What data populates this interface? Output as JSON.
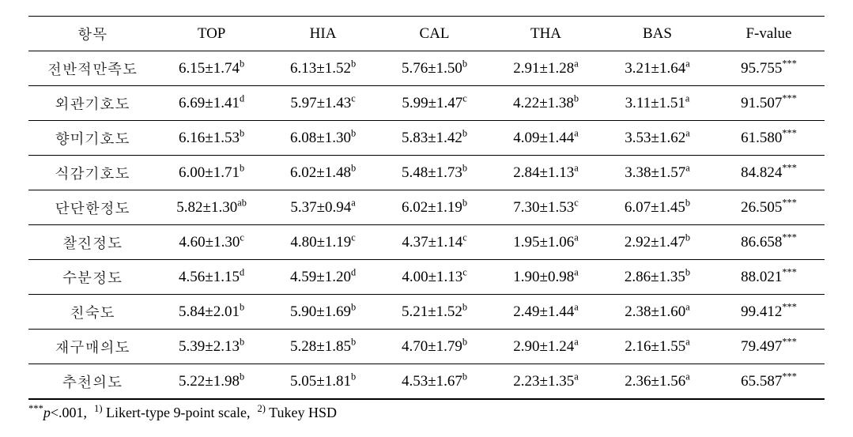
{
  "table": {
    "columns": [
      "항목",
      "TOP",
      "HIA",
      "CAL",
      "THA",
      "BAS",
      "F-value"
    ],
    "col_widths_pct": [
      16,
      14,
      14,
      14,
      14,
      14,
      14
    ],
    "header_border_top": "1px solid #000",
    "header_border_bottom_double": true,
    "row_border": "1px solid #000",
    "last_row_border_bottom": "2px solid #000",
    "font_family": "Times New Roman / Batang serif",
    "font_size_pt": 14,
    "background_color": "#ffffff",
    "text_color": "#000000",
    "rows": [
      {
        "label": "전반적만족도",
        "TOP": {
          "mean": "6.15",
          "sd": "1.74",
          "sup": "b"
        },
        "HIA": {
          "mean": "6.13",
          "sd": "1.52",
          "sup": "b"
        },
        "CAL": {
          "mean": "5.76",
          "sd": "1.50",
          "sup": "b"
        },
        "THA": {
          "mean": "2.91",
          "sd": "1.28",
          "sup": "a"
        },
        "BAS": {
          "mean": "3.21",
          "sd": "1.64",
          "sup": "a"
        },
        "F": {
          "value": "95.755",
          "sup": "***"
        }
      },
      {
        "label": "외관기호도",
        "TOP": {
          "mean": "6.69",
          "sd": "1.41",
          "sup": "d"
        },
        "HIA": {
          "mean": "5.97",
          "sd": "1.43",
          "sup": "c"
        },
        "CAL": {
          "mean": "5.99",
          "sd": "1.47",
          "sup": "c"
        },
        "THA": {
          "mean": "4.22",
          "sd": "1.38",
          "sup": "b"
        },
        "BAS": {
          "mean": "3.11",
          "sd": "1.51",
          "sup": "a"
        },
        "F": {
          "value": "91.507",
          "sup": "***"
        }
      },
      {
        "label": "향미기호도",
        "TOP": {
          "mean": "6.16",
          "sd": "1.53",
          "sup": "b"
        },
        "HIA": {
          "mean": "6.08",
          "sd": "1.30",
          "sup": "b"
        },
        "CAL": {
          "mean": "5.83",
          "sd": "1.42",
          "sup": "b"
        },
        "THA": {
          "mean": "4.09",
          "sd": "1.44",
          "sup": "a"
        },
        "BAS": {
          "mean": "3.53",
          "sd": "1.62",
          "sup": "a"
        },
        "F": {
          "value": "61.580",
          "sup": "***"
        }
      },
      {
        "label": "식감기호도",
        "TOP": {
          "mean": "6.00",
          "sd": "1.71",
          "sup": "b"
        },
        "HIA": {
          "mean": "6.02",
          "sd": "1.48",
          "sup": "b"
        },
        "CAL": {
          "mean": "5.48",
          "sd": "1.73",
          "sup": "b"
        },
        "THA": {
          "mean": "2.84",
          "sd": "1.13",
          "sup": "a"
        },
        "BAS": {
          "mean": "3.38",
          "sd": "1.57",
          "sup": "a"
        },
        "F": {
          "value": "84.824",
          "sup": "***"
        }
      },
      {
        "label": "단단한정도",
        "TOP": {
          "mean": "5.82",
          "sd": "1.30",
          "sup": "ab"
        },
        "HIA": {
          "mean": "5.37",
          "sd": "0.94",
          "sup": "a"
        },
        "CAL": {
          "mean": "6.02",
          "sd": "1.19",
          "sup": "b"
        },
        "THA": {
          "mean": "7.30",
          "sd": "1.53",
          "sup": "c"
        },
        "BAS": {
          "mean": "6.07",
          "sd": "1.45",
          "sup": "b"
        },
        "F": {
          "value": "26.505",
          "sup": "***"
        }
      },
      {
        "label": "찰진정도",
        "TOP": {
          "mean": "4.60",
          "sd": "1.30",
          "sup": "c"
        },
        "HIA": {
          "mean": "4.80",
          "sd": "1.19",
          "sup": "c"
        },
        "CAL": {
          "mean": "4.37",
          "sd": "1.14",
          "sup": "c"
        },
        "THA": {
          "mean": "1.95",
          "sd": "1.06",
          "sup": "a"
        },
        "BAS": {
          "mean": "2.92",
          "sd": "1.47",
          "sup": "b"
        },
        "F": {
          "value": "86.658",
          "sup": "***"
        }
      },
      {
        "label": "수분정도",
        "TOP": {
          "mean": "4.56",
          "sd": "1.15",
          "sup": "d"
        },
        "HIA": {
          "mean": "4.59",
          "sd": "1.20",
          "sup": "d"
        },
        "CAL": {
          "mean": "4.00",
          "sd": "1.13",
          "sup": "c"
        },
        "THA": {
          "mean": "1.90",
          "sd": "0.98",
          "sup": "a"
        },
        "BAS": {
          "mean": "2.86",
          "sd": "1.35",
          "sup": "b"
        },
        "F": {
          "value": "88.021",
          "sup": "***"
        }
      },
      {
        "label": "친숙도",
        "TOP": {
          "mean": "5.84",
          "sd": "2.01",
          "sup": "b"
        },
        "HIA": {
          "mean": "5.90",
          "sd": "1.69",
          "sup": "b"
        },
        "CAL": {
          "mean": "5.21",
          "sd": "1.52",
          "sup": "b"
        },
        "THA": {
          "mean": "2.49",
          "sd": "1.44",
          "sup": "a"
        },
        "BAS": {
          "mean": "2.38",
          "sd": "1.60",
          "sup": "a"
        },
        "F": {
          "value": "99.412",
          "sup": "***"
        }
      },
      {
        "label": "재구매의도",
        "TOP": {
          "mean": "5.39",
          "sd": "2.13",
          "sup": "b"
        },
        "HIA": {
          "mean": "5.28",
          "sd": "1.85",
          "sup": "b"
        },
        "CAL": {
          "mean": "4.70",
          "sd": "1.79",
          "sup": "b"
        },
        "THA": {
          "mean": "2.90",
          "sd": "1.24",
          "sup": "a"
        },
        "BAS": {
          "mean": "2.16",
          "sd": "1.55",
          "sup": "a"
        },
        "F": {
          "value": "79.497",
          "sup": "***"
        }
      },
      {
        "label": "추천의도",
        "TOP": {
          "mean": "5.22",
          "sd": "1.98",
          "sup": "b"
        },
        "HIA": {
          "mean": "5.05",
          "sd": "1.81",
          "sup": "b"
        },
        "CAL": {
          "mean": "4.53",
          "sd": "1.67",
          "sup": "b"
        },
        "THA": {
          "mean": "2.23",
          "sd": "1.35",
          "sup": "a"
        },
        "BAS": {
          "mean": "2.36",
          "sd": "1.56",
          "sup": "a"
        },
        "F": {
          "value": "65.587",
          "sup": "***"
        }
      }
    ]
  },
  "footnote": {
    "sig_marker": "***",
    "p_text": "p",
    "p_value": "<.001,",
    "note1_sup": "1)",
    "note1": "Likert-type 9-point scale,",
    "note2_sup": "2)",
    "note2": "Tukey HSD"
  }
}
